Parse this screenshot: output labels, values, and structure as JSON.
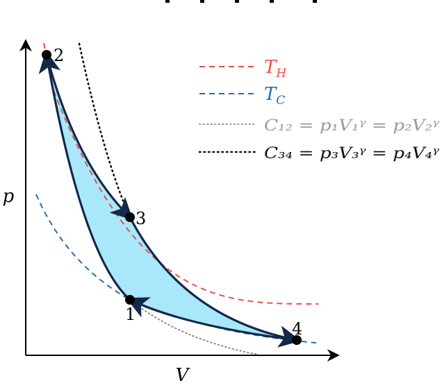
{
  "axes": {
    "x_label": "V",
    "y_label": "p"
  },
  "points": [
    {
      "id": "1",
      "label": "1"
    },
    {
      "id": "2",
      "label": "2"
    },
    {
      "id": "3",
      "label": "3"
    },
    {
      "id": "4",
      "label": "4"
    }
  ],
  "legend": [
    {
      "id": "th",
      "main": "T",
      "sub": "H",
      "style": "dashed",
      "color": "#ee4b4b"
    },
    {
      "id": "tc",
      "main": "T",
      "sub": "C",
      "style": "dashed",
      "color": "#1f6fb0"
    },
    {
      "id": "c12",
      "text": "C₁₂ = p₁V₁ᵞ = p₂V₂ᵞ",
      "style": "dotted",
      "color": "#9a9a9a"
    },
    {
      "id": "c34",
      "text": "C₃₄ = p₃V₃ᵞ = p₄V₄ᵞ",
      "style": "dotted",
      "color": "#111111"
    }
  ],
  "colors": {
    "cycle_fill": "#a8e8fa",
    "cycle_stroke": "#13284a",
    "hot_isotherm": "#ee4b4b",
    "cold_isotherm": "#1f6fb0"
  }
}
